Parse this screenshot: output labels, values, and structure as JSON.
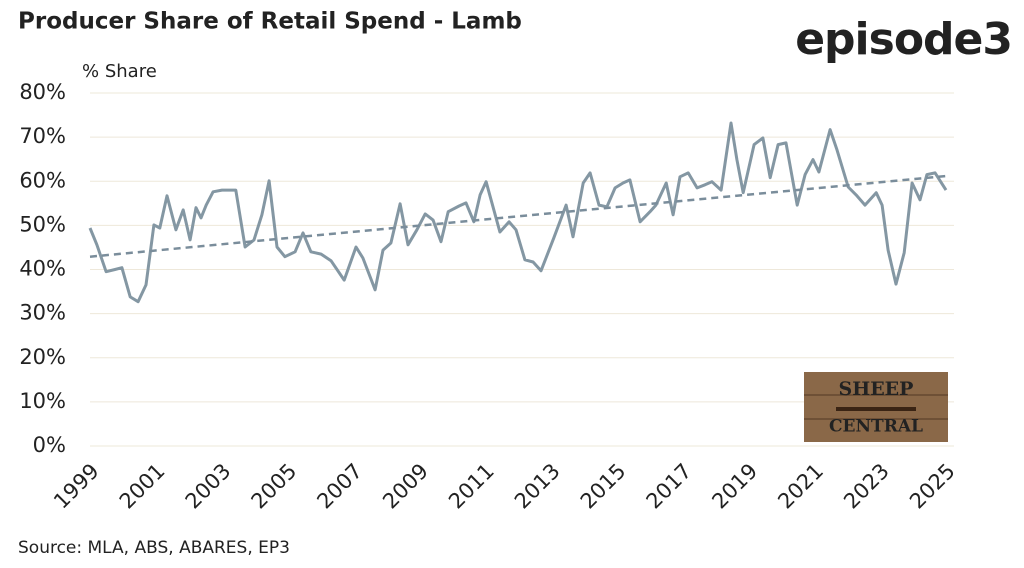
{
  "chart_data": {
    "type": "line",
    "title": "Producer Share of Retail Spend - Lamb",
    "ylabel": "% Share",
    "source": "Source: MLA, ABS, ABARES, EP3",
    "xlim": [
      1999,
      2025
    ],
    "xticks": [
      1999,
      2001,
      2003,
      2005,
      2007,
      2009,
      2011,
      2013,
      2015,
      2017,
      2019,
      2021,
      2023,
      2025
    ],
    "ylim": [
      0,
      80
    ],
    "yticks": [
      {
        "value": 0,
        "label": "0%"
      },
      {
        "value": 10,
        "label": "10%"
      },
      {
        "value": 20,
        "label": "20%"
      },
      {
        "value": 30,
        "label": "30%"
      },
      {
        "value": 40,
        "label": "40%"
      },
      {
        "value": 50,
        "label": "50%"
      },
      {
        "value": 60,
        "label": "60%"
      },
      {
        "value": 70,
        "label": "70%"
      },
      {
        "value": 80,
        "label": "80%"
      }
    ],
    "grid": true,
    "series": [
      {
        "color": "#8497a3",
        "style": "solid",
        "x": [
          1999.0,
          1999.21,
          1999.49,
          1999.76,
          1999.97,
          2000.22,
          2000.46,
          2000.7,
          2000.94,
          2001.12,
          2001.34,
          2001.61,
          2001.83,
          2002.04,
          2002.22,
          2002.37,
          2002.53,
          2002.74,
          2003.01,
          2003.43,
          2003.71,
          2003.98,
          2004.22,
          2004.44,
          2004.68,
          2004.92,
          2005.23,
          2005.47,
          2005.71,
          2006.02,
          2006.32,
          2006.72,
          2007.08,
          2007.29,
          2007.66,
          2007.9,
          2008.14,
          2008.42,
          2008.66,
          2008.93,
          2009.18,
          2009.42,
          2009.66,
          2009.88,
          2010.21,
          2010.42,
          2010.66,
          2010.85,
          2011.03,
          2011.45,
          2011.73,
          2011.94,
          2012.21,
          2012.46,
          2012.7,
          2013.09,
          2013.46,
          2013.67,
          2013.98,
          2014.19,
          2014.46,
          2014.7,
          2014.95,
          2015.19,
          2015.4,
          2015.71,
          2016.01,
          2016.19,
          2016.5,
          2016.71,
          2016.92,
          2017.17,
          2017.44,
          2017.68,
          2017.89,
          2018.17,
          2018.47,
          2018.65,
          2018.84,
          2019.17,
          2019.44,
          2019.66,
          2019.9,
          2020.14,
          2020.48,
          2020.72,
          2020.96,
          2021.14,
          2021.48,
          2021.69,
          2022.03,
          2022.27,
          2022.54,
          2022.88,
          2023.06,
          2023.24,
          2023.48,
          2023.73,
          2023.97,
          2024.21,
          2024.42,
          2024.67,
          2025.0
        ],
        "values": [
          49.4,
          45.6,
          39.5,
          40,
          40.4,
          33.8,
          32.7,
          36.5,
          50.1,
          49.4,
          56.7,
          49,
          53.5,
          46.7,
          54,
          51.7,
          54.6,
          57.6,
          58,
          58,
          45.1,
          46.7,
          52.4,
          60.1,
          45.1,
          42.9,
          44,
          48.3,
          44,
          43.5,
          42,
          37.6,
          45.1,
          42.6,
          35.4,
          44.4,
          46,
          54.9,
          45.6,
          49,
          52.6,
          51.2,
          46.3,
          53.1,
          54.4,
          55.1,
          50.8,
          56.9,
          59.9,
          48.5,
          50.8,
          49,
          42.2,
          41.7,
          39.7,
          47.2,
          54.6,
          47.4,
          59.6,
          61.9,
          54.6,
          54.2,
          58.5,
          59.6,
          60.3,
          50.8,
          53.1,
          54.6,
          59.6,
          52.4,
          61,
          61.9,
          58.5,
          59.2,
          59.9,
          58,
          73.2,
          64.9,
          57.4,
          68.3,
          69.8,
          60.8,
          68.3,
          68.7,
          54.6,
          61.5,
          64.9,
          62.1,
          71.7,
          67.1,
          58.7,
          56.9,
          54.6,
          57.4,
          54.6,
          44.4,
          36.7,
          43.8,
          59.6,
          55.8,
          61.5,
          61.9,
          58
        ]
      },
      {
        "color": "#7a8d9b",
        "style": "dashed",
        "x": [
          1999,
          2025
        ],
        "values": [
          42.9,
          61.2
        ]
      }
    ]
  },
  "logo": "episode3",
  "watermark": [
    "SHEEP",
    "CENTRAL"
  ]
}
